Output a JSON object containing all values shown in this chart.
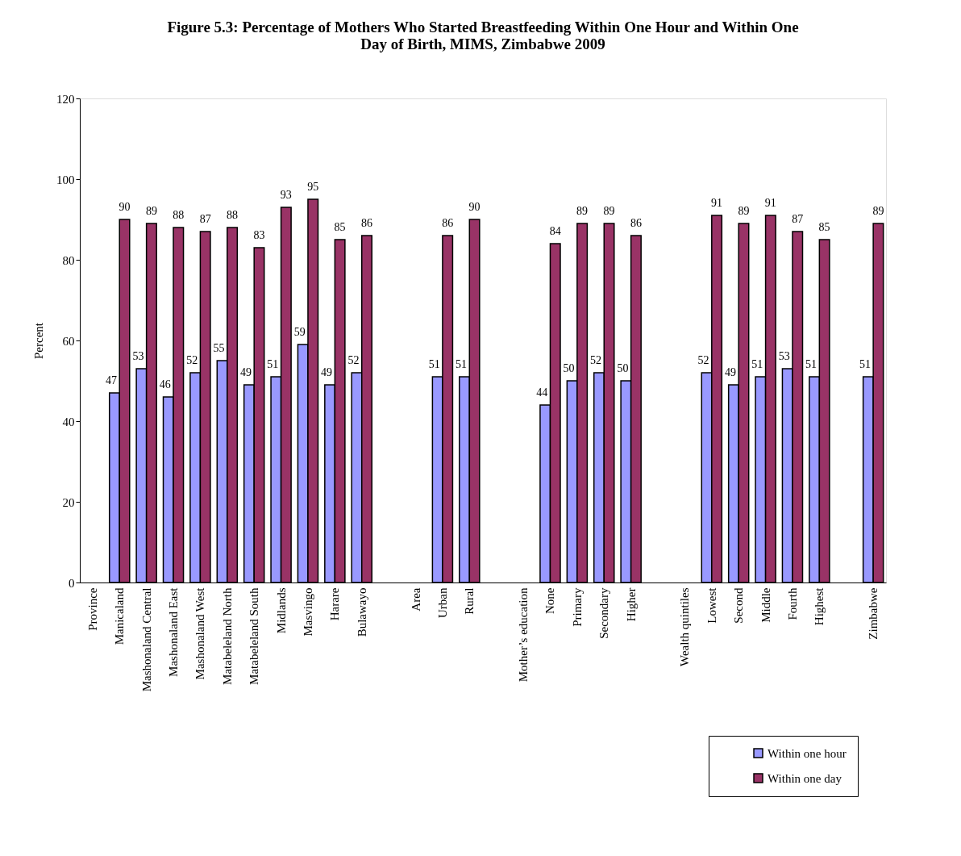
{
  "chart_data": {
    "type": "bar",
    "title": "Figure 5.3: Percentage of Mothers Who Started Breastfeeding Within One Hour and Within One Day of Birth, MIMS, Zimbabwe 2009",
    "ylabel": "Percent",
    "categories": [
      "Province",
      "Manicaland",
      "Mashonaland Central",
      "Mashonaland East",
      "Mashonaland West",
      "Matabeleland North",
      "Matabeleland South",
      "Midlands",
      "Masvingo",
      "Harare",
      "Bulawayo",
      null,
      "Area",
      "Urban",
      "Rural",
      null,
      "Mother’s education",
      "None",
      "Primary",
      "Secondary",
      "Higher",
      null,
      "Wealth quintiles",
      "Lowest",
      "Second",
      "Middle",
      "Fourth",
      "Highest",
      null,
      "Zimbabwe"
    ],
    "series": [
      {
        "name": "Within one hour",
        "color": "#9999ff",
        "values": [
          null,
          47,
          53,
          46,
          52,
          55,
          49,
          51,
          59,
          49,
          52,
          null,
          null,
          51,
          51,
          null,
          null,
          44,
          50,
          52,
          50,
          null,
          null,
          52,
          49,
          51,
          53,
          51,
          null,
          51
        ]
      },
      {
        "name": "Within one day",
        "color": "#993366",
        "values": [
          null,
          90,
          89,
          88,
          87,
          88,
          83,
          93,
          95,
          85,
          86,
          null,
          null,
          86,
          90,
          null,
          null,
          84,
          89,
          89,
          86,
          null,
          null,
          91,
          89,
          91,
          87,
          85,
          null,
          89
        ]
      }
    ],
    "ylim": [
      0,
      120
    ],
    "yticks": [
      0,
      20,
      40,
      60,
      80,
      100,
      120
    ],
    "grid": false,
    "legend": "bottom right",
    "data_labels": true
  }
}
